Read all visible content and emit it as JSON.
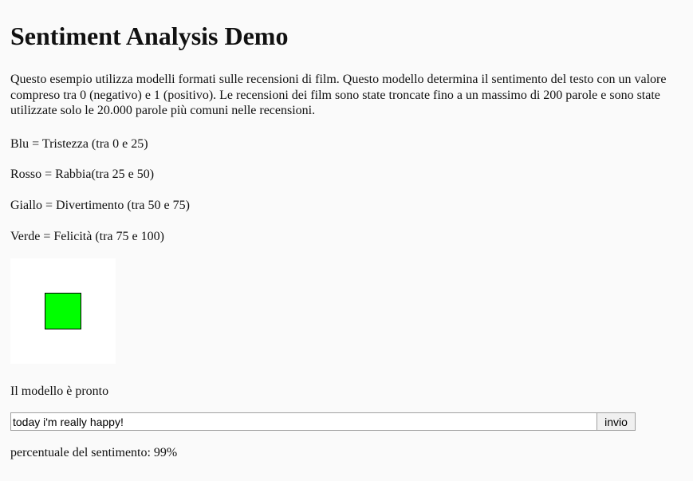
{
  "page": {
    "title": "Sentiment Analysis Demo",
    "intro": "Questo esempio utilizza modelli formati sulle recensioni di film. Questo modello determina il sentimento del testo con un valore compreso tra 0 (negativo) e 1 (positivo). Le recensioni dei film sono state troncate fino a un massimo di 200 parole e sono state utilizzate solo le 20.000 parole più comuni nelle recensioni."
  },
  "legend": [
    "Blu = Tristezza (tra 0 e 25)",
    "Rosso = Rabbia(tra 25 e 50)",
    "Giallo = Divertimento (tra 50 e 75)",
    "Verde = Felicità (tra 75 e 100)"
  ],
  "mood_indicator": {
    "color": "#00ff00"
  },
  "status": "Il modello è pronto",
  "input": {
    "value": "today i'm really happy!"
  },
  "send_button": {
    "label": "invio"
  },
  "result": "percentuale del sentimento: 99%"
}
